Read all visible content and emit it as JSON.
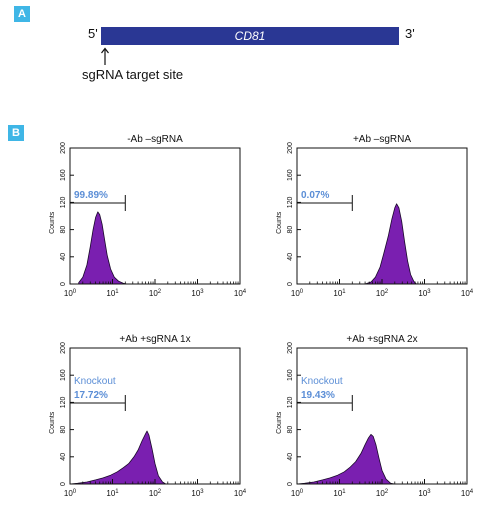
{
  "panels": {
    "a": "A",
    "b": "B"
  },
  "gene_map": {
    "gene": "CD81",
    "five_prime": "5'",
    "three_prime": "3'",
    "target_label": "sgRNA target site"
  },
  "colors": {
    "badge": "#3fb6e6",
    "gene_bar": "#2a3794",
    "histogram_fill": "#7a1fb0",
    "gate_label": "#5b8ed6"
  },
  "chart_data": [
    {
      "type": "area",
      "title": "-Ab –sgRNA",
      "ylabel": "Counts",
      "xscale": "log",
      "xlim": [
        1,
        10000
      ],
      "ylim": [
        0,
        200
      ],
      "x_ticks": [
        1,
        10,
        100,
        1000,
        10000
      ],
      "y_ticks": [
        0,
        40,
        80,
        120,
        160,
        200
      ],
      "gate": {
        "x": [
          1,
          20
        ],
        "label": "",
        "percent": "99.89%"
      },
      "peak_x": 4.5,
      "peak_y": 106,
      "points": [
        [
          1.6,
          2
        ],
        [
          2,
          10
        ],
        [
          2.5,
          28
        ],
        [
          3,
          55
        ],
        [
          3.5,
          80
        ],
        [
          4,
          98
        ],
        [
          4.5,
          106
        ],
        [
          5,
          102
        ],
        [
          5.7,
          88
        ],
        [
          6.5,
          66
        ],
        [
          7.5,
          42
        ],
        [
          9,
          22
        ],
        [
          11,
          10
        ],
        [
          14,
          4
        ],
        [
          18,
          1
        ],
        [
          22,
          0
        ]
      ]
    },
    {
      "type": "area",
      "title": "+Ab –sgRNA",
      "ylabel": "Counts",
      "xscale": "log",
      "xlim": [
        1,
        10000
      ],
      "ylim": [
        0,
        200
      ],
      "x_ticks": [
        1,
        10,
        100,
        1000,
        10000
      ],
      "y_ticks": [
        0,
        40,
        80,
        120,
        160,
        200
      ],
      "gate": {
        "x": [
          1,
          20
        ],
        "label": "",
        "percent": "0.07%"
      },
      "peak_x": 220,
      "peak_y": 118,
      "points": [
        [
          40,
          0
        ],
        [
          55,
          3
        ],
        [
          70,
          10
        ],
        [
          90,
          25
        ],
        [
          110,
          45
        ],
        [
          140,
          70
        ],
        [
          170,
          95
        ],
        [
          200,
          112
        ],
        [
          220,
          118
        ],
        [
          250,
          112
        ],
        [
          290,
          92
        ],
        [
          340,
          62
        ],
        [
          400,
          34
        ],
        [
          470,
          14
        ],
        [
          560,
          4
        ],
        [
          650,
          0
        ]
      ]
    },
    {
      "type": "area",
      "title": "+Ab +sgRNA 1x",
      "ylabel": "Counts",
      "xscale": "log",
      "xlim": [
        1,
        10000
      ],
      "ylim": [
        0,
        200
      ],
      "x_ticks": [
        1,
        10,
        100,
        1000,
        10000
      ],
      "y_ticks": [
        0,
        40,
        80,
        120,
        160,
        200
      ],
      "gate": {
        "x": [
          1,
          20
        ],
        "label": "Knockout",
        "percent": "17.72%"
      },
      "peak_x": 65,
      "peak_y": 78,
      "points": [
        [
          1,
          0
        ],
        [
          1.5,
          1
        ],
        [
          2.5,
          3
        ],
        [
          4,
          6
        ],
        [
          6,
          9
        ],
        [
          9,
          13
        ],
        [
          13,
          18
        ],
        [
          18,
          24
        ],
        [
          24,
          30
        ],
        [
          32,
          40
        ],
        [
          40,
          50
        ],
        [
          50,
          64
        ],
        [
          60,
          74
        ],
        [
          65,
          78
        ],
        [
          72,
          72
        ],
        [
          85,
          52
        ],
        [
          100,
          30
        ],
        [
          120,
          12
        ],
        [
          150,
          3
        ],
        [
          180,
          0
        ]
      ]
    },
    {
      "type": "area",
      "title": "+Ab +sgRNA 2x",
      "ylabel": "Counts",
      "xscale": "log",
      "xlim": [
        1,
        10000
      ],
      "ylim": [
        0,
        200
      ],
      "x_ticks": [
        1,
        10,
        100,
        1000,
        10000
      ],
      "y_ticks": [
        0,
        40,
        80,
        120,
        160,
        200
      ],
      "gate": {
        "x": [
          1,
          20
        ],
        "label": "Knockout",
        "percent": "19.43%"
      },
      "peak_x": 55,
      "peak_y": 73,
      "points": [
        [
          1,
          0
        ],
        [
          1.5,
          1
        ],
        [
          2.5,
          3
        ],
        [
          4,
          6
        ],
        [
          6,
          9
        ],
        [
          9,
          13
        ],
        [
          13,
          18
        ],
        [
          18,
          25
        ],
        [
          24,
          33
        ],
        [
          32,
          45
        ],
        [
          40,
          58
        ],
        [
          48,
          68
        ],
        [
          55,
          73
        ],
        [
          62,
          70
        ],
        [
          72,
          58
        ],
        [
          85,
          38
        ],
        [
          100,
          20
        ],
        [
          125,
          7
        ],
        [
          160,
          1
        ],
        [
          200,
          0
        ]
      ]
    }
  ]
}
